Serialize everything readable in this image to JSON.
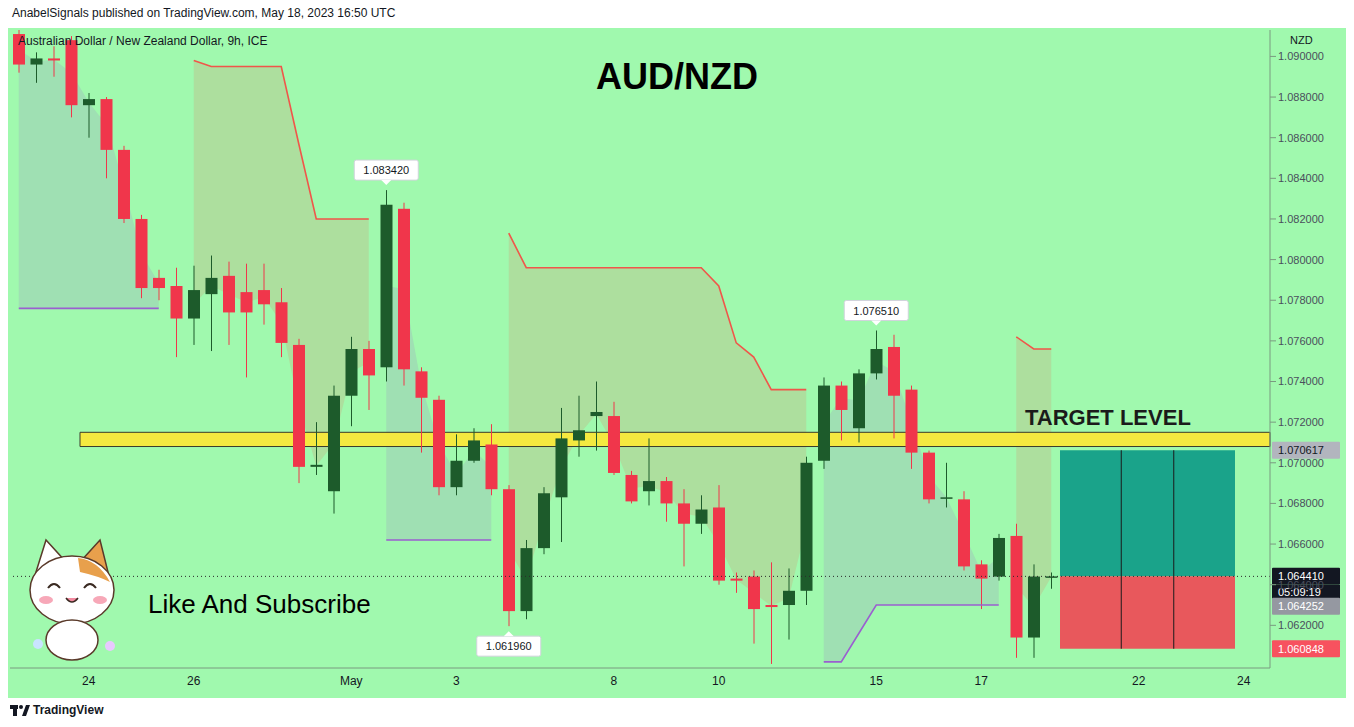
{
  "chart_data": {
    "type": "candlestick",
    "title": "AUD/NZD",
    "subtitle": "Australian Dollar / New Zealand Dollar, 9h, ICE",
    "header": "AnabelSignals published on TradingView.com, May 18, 2023 16:50 UTC",
    "footer": "TradingView",
    "currency": "NZD",
    "caption": "Like And Subscribe",
    "categories": [
      null,
      null,
      null,
      null,
      "24",
      null,
      null,
      null,
      null,
      null,
      "26",
      null,
      null,
      null,
      null,
      null,
      null,
      null,
      null,
      "May",
      null,
      null,
      null,
      null,
      null,
      "3",
      null,
      null,
      null,
      null,
      null,
      null,
      null,
      null,
      "8",
      null,
      null,
      null,
      null,
      null,
      "10",
      null,
      null,
      null,
      null,
      null,
      null,
      null,
      null,
      "15",
      null,
      null,
      null,
      null,
      null,
      "17",
      null,
      null,
      null,
      null,
      null,
      null,
      null,
      null,
      "22",
      null,
      null,
      null,
      null,
      null,
      "24",
      null
    ],
    "open": [
      1.0911,
      1.0896,
      1.0899,
      1.0908,
      1.0876,
      1.0879,
      1.0854,
      1.082,
      1.0791,
      1.0787,
      1.0771,
      1.0783,
      1.0792,
      1.0784,
      1.0785,
      1.0779,
      1.0758,
      1.0698,
      1.0686,
      1.0733,
      1.0756,
      1.0747,
      1.0825,
      1.0745,
      1.0731,
      1.0688,
      1.0701,
      1.0709,
      1.0687,
      1.0627,
      1.0658,
      1.0683,
      1.0711,
      1.0723,
      1.0723,
      1.0694,
      1.0686,
      1.0691,
      1.068,
      1.067,
      1.0678,
      1.0643,
      1.0644,
      1.063,
      1.063,
      1.0637,
      1.0701,
      1.0738,
      1.0717,
      1.0744,
      1.0757,
      1.0736,
      1.0705,
      1.0683,
      1.0682,
      1.065,
      1.0644,
      1.0664,
      1.0614,
      1.06435,
      null,
      null,
      null,
      null,
      null,
      null,
      null,
      null,
      null,
      null,
      null,
      null
    ],
    "high": [
      1.0913,
      1.0902,
      1.0905,
      1.091,
      1.0882,
      1.088,
      1.0856,
      1.0822,
      1.0795,
      1.0796,
      1.0797,
      1.0802,
      1.0799,
      1.0798,
      1.0798,
      1.0786,
      1.0761,
      1.072,
      1.0738,
      1.0762,
      1.076,
      1.08342,
      1.0828,
      1.0747,
      1.0733,
      1.0714,
      1.0717,
      1.0719,
      1.0689,
      1.0662,
      1.0688,
      1.0727,
      1.0733,
      1.074,
      1.073,
      1.0696,
      1.0712,
      1.0693,
      1.0687,
      1.0684,
      1.0689,
      1.0646,
      1.0647,
      1.0651,
      1.0648,
      1.0703,
      1.0742,
      1.074,
      1.0746,
      1.07651,
      1.0763,
      1.0738,
      1.0706,
      1.07,
      1.0686,
      1.0652,
      1.0665,
      1.067,
      1.065,
      1.0646,
      null,
      null,
      null,
      null,
      null,
      null,
      null,
      null,
      null,
      null,
      null,
      null
    ],
    "low": [
      1.0892,
      1.0887,
      1.089,
      1.087,
      1.086,
      1.084,
      1.0818,
      1.0781,
      1.078,
      1.0752,
      1.0758,
      1.0755,
      1.0758,
      1.0742,
      1.0768,
      1.0752,
      1.069,
      1.0694,
      1.0675,
      1.0718,
      1.0726,
      1.074,
      1.0738,
      1.0705,
      1.0684,
      1.0684,
      1.07,
      1.0684,
      1.06196,
      1.0623,
      1.0655,
      1.0661,
      1.0703,
      1.0706,
      1.0694,
      1.068,
      1.0679,
      1.0671,
      1.0649,
      1.0665,
      1.064,
      1.0636,
      1.0611,
      1.0601,
      1.0613,
      1.063,
      1.0697,
      1.0711,
      1.071,
      1.0741,
      1.0712,
      1.0697,
      1.068,
      1.0678,
      1.0647,
      1.0628,
      1.0642,
      1.0604,
      1.0604,
      1.0638,
      null,
      null,
      null,
      null,
      null,
      null,
      null,
      null,
      null,
      null,
      null,
      null
    ],
    "close": [
      1.0896,
      1.0899,
      1.0898,
      1.0876,
      1.0879,
      1.0854,
      1.082,
      1.0786,
      1.0786,
      1.0771,
      1.0785,
      1.0791,
      1.0774,
      1.0774,
      1.0778,
      1.0759,
      1.0698,
      1.0699,
      1.0733,
      1.0756,
      1.0743,
      1.0827,
      1.0746,
      1.0732,
      1.0688,
      1.0701,
      1.0711,
      1.0687,
      1.0627,
      1.0658,
      1.0685,
      1.0712,
      1.0716,
      1.0725,
      1.0695,
      1.0681,
      1.0691,
      1.068,
      1.067,
      1.0677,
      1.0642,
      1.0642,
      1.0628,
      1.0629,
      1.0637,
      1.07,
      1.0738,
      1.0726,
      1.0744,
      1.0756,
      1.0733,
      1.0705,
      1.0682,
      1.0683,
      1.0649,
      1.0643,
      1.0663,
      1.0614,
      1.0644,
      1.06441,
      null,
      null,
      null,
      null,
      null,
      null,
      null,
      null,
      null,
      null,
      null,
      null
    ],
    "overlays": [
      {
        "color": "#f0564a",
        "values": [
          null,
          null,
          null,
          null,
          null,
          null,
          null,
          null,
          null,
          null,
          1.0898,
          1.0895,
          1.0895,
          1.0895,
          1.0895,
          1.0895,
          1.0857,
          1.082,
          1.082,
          1.082,
          1.082,
          null,
          null,
          null,
          null,
          null,
          null,
          null,
          1.0813,
          1.0796,
          1.0796,
          1.0796,
          1.0796,
          1.0796,
          1.0796,
          1.0796,
          1.0796,
          1.0796,
          1.0796,
          1.0796,
          1.0787,
          1.0759,
          1.0752,
          1.0736,
          1.0736,
          1.0736,
          null,
          null,
          null,
          null,
          null,
          null,
          null,
          null,
          null,
          null,
          null,
          1.0762,
          1.0756,
          1.0756,
          null,
          null,
          null,
          null,
          null,
          null,
          null,
          null,
          null,
          null,
          null,
          null
        ]
      },
      {
        "color": "#9a5fd0",
        "values": [
          1.0776,
          1.0776,
          1.0776,
          1.0776,
          1.0776,
          1.0776,
          1.0776,
          1.0776,
          1.0776,
          null,
          null,
          null,
          null,
          null,
          null,
          null,
          null,
          null,
          null,
          null,
          null,
          1.0662,
          1.0662,
          1.0662,
          1.0662,
          1.0662,
          1.0662,
          1.0662,
          null,
          null,
          null,
          null,
          null,
          null,
          null,
          null,
          null,
          null,
          null,
          null,
          null,
          null,
          null,
          null,
          null,
          null,
          1.0602,
          1.0602,
          1.0616,
          1.063,
          1.063,
          1.063,
          1.063,
          1.063,
          1.063,
          1.063,
          1.063,
          null,
          null,
          null,
          null,
          null,
          null,
          null,
          null,
          null,
          null,
          null,
          null,
          null,
          null,
          null
        ]
      }
    ],
    "ylim": [
      1.0599,
      1.0913
    ],
    "yticks": [
      {
        "value": 1.062,
        "label": "1.062000"
      },
      {
        "value": 1.064,
        "label": "1.064000"
      },
      {
        "value": 1.066,
        "label": "1.066000"
      },
      {
        "value": 1.068,
        "label": "1.068000"
      },
      {
        "value": 1.07,
        "label": "1.070000"
      },
      {
        "value": 1.072,
        "label": "1.072000"
      },
      {
        "value": 1.074,
        "label": "1.074000"
      },
      {
        "value": 1.076,
        "label": "1.076000"
      },
      {
        "value": 1.078,
        "label": "1.078000"
      },
      {
        "value": 1.08,
        "label": "1.080000"
      },
      {
        "value": 1.082,
        "label": "1.082000"
      },
      {
        "value": 1.084,
        "label": "1.084000"
      },
      {
        "value": 1.086,
        "label": "1.086000"
      },
      {
        "value": 1.088,
        "label": "1.088000"
      },
      {
        "value": 1.09,
        "label": "1.090000"
      }
    ],
    "markers": [
      {
        "index": 21,
        "value": 1.08342,
        "label": "1.083420"
      },
      {
        "index": 49,
        "value": 1.07651,
        "label": "1.076510"
      },
      {
        "index": 28,
        "value": 1.06196,
        "label": "1.061960"
      }
    ],
    "target_level": {
      "label": "TARGET LEVEL",
      "from": 1.0708,
      "to": 1.0715,
      "x_range": [
        4,
        71
      ]
    },
    "position": {
      "start": 60,
      "end": 69,
      "target": 1.070617,
      "entry": 1.06441,
      "stop": 1.060848
    },
    "price_tags": [
      {
        "value": 1.070617,
        "label": "1.070617",
        "color": "#b2b5be"
      },
      {
        "value": 1.06441,
        "label": "1.064410",
        "color": "#131722"
      },
      {
        "value": 1.064252,
        "label": "1.064252",
        "color": "#9598a1"
      },
      {
        "value": 1.060848,
        "label": "1.060848",
        "color": "#f7525f"
      }
    ],
    "countdown": "05:09:19"
  }
}
